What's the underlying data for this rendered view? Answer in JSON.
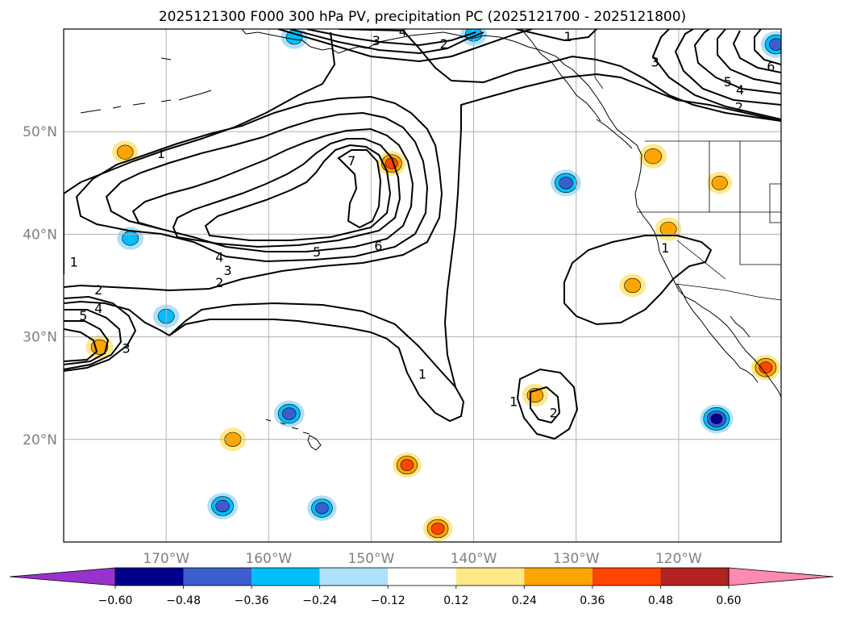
{
  "chart_data": {
    "type": "contour-map",
    "title": "2025121300 F000 300 hPa PV, precipitation PC (2025121700 - 2025121800)",
    "projection": "PlateCarree",
    "lon_range": [
      -180,
      -110
    ],
    "lat_range": [
      10,
      60
    ],
    "grid": true,
    "x_ticks": [
      {
        "lon": -170,
        "label": "170°W"
      },
      {
        "lon": -160,
        "label": "160°W"
      },
      {
        "lon": -150,
        "label": "150°W"
      },
      {
        "lon": -140,
        "label": "140°W"
      },
      {
        "lon": -130,
        "label": "130°W"
      },
      {
        "lon": -120,
        "label": "120°W"
      }
    ],
    "y_ticks": [
      {
        "lat": 20,
        "label": "20°N"
      },
      {
        "lat": 30,
        "label": "30°N"
      },
      {
        "lat": 40,
        "label": "40°N"
      },
      {
        "lat": 50,
        "label": "50°N"
      }
    ],
    "contour_variable": "300 hPa PV",
    "contour_levels": [
      1,
      2,
      3,
      4,
      5,
      6,
      7
    ],
    "contour_labels": [
      {
        "text": "1",
        "lon": -170.5,
        "lat": 47.9
      },
      {
        "text": "7",
        "lon": -151.9,
        "lat": 47.2
      },
      {
        "text": "6",
        "lon": -149.3,
        "lat": 38.9
      },
      {
        "text": "5",
        "lon": -155.3,
        "lat": 38.3
      },
      {
        "text": "4",
        "lon": -164.8,
        "lat": 37.8
      },
      {
        "text": "3",
        "lon": -164.0,
        "lat": 36.5
      },
      {
        "text": "2",
        "lon": -164.8,
        "lat": 35.3
      },
      {
        "text": "1",
        "lon": -179.0,
        "lat": 37.3
      },
      {
        "text": "2",
        "lon": -176.6,
        "lat": 34.6
      },
      {
        "text": "4",
        "lon": -176.6,
        "lat": 32.8
      },
      {
        "text": "5",
        "lon": -178.1,
        "lat": 32.1
      },
      {
        "text": "3",
        "lon": -173.9,
        "lat": 28.9
      },
      {
        "text": "1",
        "lon": -145.0,
        "lat": 26.4
      },
      {
        "text": "1",
        "lon": -136.1,
        "lat": 23.7
      },
      {
        "text": "2",
        "lon": -132.2,
        "lat": 22.6
      },
      {
        "text": "1",
        "lon": -121.3,
        "lat": 38.7
      },
      {
        "text": "3",
        "lon": -122.3,
        "lat": 56.8
      },
      {
        "text": "4",
        "lon": -146.9,
        "lat": 59.8
      },
      {
        "text": "3",
        "lon": -149.5,
        "lat": 58.9
      },
      {
        "text": "2",
        "lon": -142.9,
        "lat": 58.6
      },
      {
        "text": "1",
        "lon": -130.8,
        "lat": 59.3
      },
      {
        "text": "5",
        "lon": -115.2,
        "lat": 54.9
      },
      {
        "text": "4",
        "lon": -114.0,
        "lat": 54.1
      },
      {
        "text": "6",
        "lon": -111.0,
        "lat": 56.4
      },
      {
        "text": "2",
        "lon": -114.1,
        "lat": 52.4
      }
    ],
    "fill_variable": "precipitation PC",
    "colorbar": {
      "levels": [
        -0.6,
        -0.48,
        -0.36,
        -0.24,
        -0.12,
        0.12,
        0.24,
        0.36,
        0.48,
        0.6
      ],
      "tick_labels": [
        "−0.60",
        "−0.48",
        "−0.36",
        "−0.24",
        "−0.12",
        "0.12",
        "0.24",
        "0.36",
        "0.48",
        "0.60"
      ],
      "colors": [
        "#9932CC",
        "#00008B",
        "#3A5FCD",
        "#00BFFF",
        "#ADE1FA",
        "#FFFFFF",
        "#FFE88A",
        "#FFA500",
        "#FF4500",
        "#B22222",
        "#FF8AAF"
      ],
      "extend": "both"
    },
    "precip_features": [
      {
        "lon": -176.5,
        "lat": 29.0,
        "max_value": 0.33
      },
      {
        "lon": -174.0,
        "lat": 48.0,
        "max_value": 0.28
      },
      {
        "lon": -148.0,
        "lat": 46.9,
        "max_value": 0.36
      },
      {
        "lon": -122.5,
        "lat": 47.6,
        "max_value": 0.35
      },
      {
        "lon": -121.0,
        "lat": 40.5,
        "max_value": 0.3
      },
      {
        "lon": -124.5,
        "lat": 35.0,
        "max_value": 0.3
      },
      {
        "lon": -116.0,
        "lat": 45.0,
        "max_value": 0.26
      },
      {
        "lon": -111.5,
        "lat": 27.0,
        "max_value": 0.4
      },
      {
        "lon": -143.5,
        "lat": 11.3,
        "max_value": 0.4
      },
      {
        "lon": -146.5,
        "lat": 17.5,
        "max_value": 0.38
      },
      {
        "lon": -163.5,
        "lat": 20.0,
        "max_value": 0.3
      },
      {
        "lon": -134.0,
        "lat": 24.3,
        "max_value": 0.28
      },
      {
        "lon": -170.0,
        "lat": 32.0,
        "max_value": -0.3
      },
      {
        "lon": -173.5,
        "lat": 39.6,
        "max_value": -0.3
      },
      {
        "lon": -158.0,
        "lat": 22.5,
        "max_value": -0.45
      },
      {
        "lon": -164.5,
        "lat": 13.5,
        "max_value": -0.45
      },
      {
        "lon": -154.8,
        "lat": 13.3,
        "max_value": -0.4
      },
      {
        "lon": -131.0,
        "lat": 45.0,
        "max_value": -0.45
      },
      {
        "lon": -116.3,
        "lat": 22.0,
        "max_value": -0.55
      },
      {
        "lon": -157.5,
        "lat": 59.2,
        "max_value": -0.3
      },
      {
        "lon": -140.0,
        "lat": 59.5,
        "max_value": -0.3
      },
      {
        "lon": -110.5,
        "lat": 58.5,
        "max_value": -0.45
      }
    ]
  }
}
